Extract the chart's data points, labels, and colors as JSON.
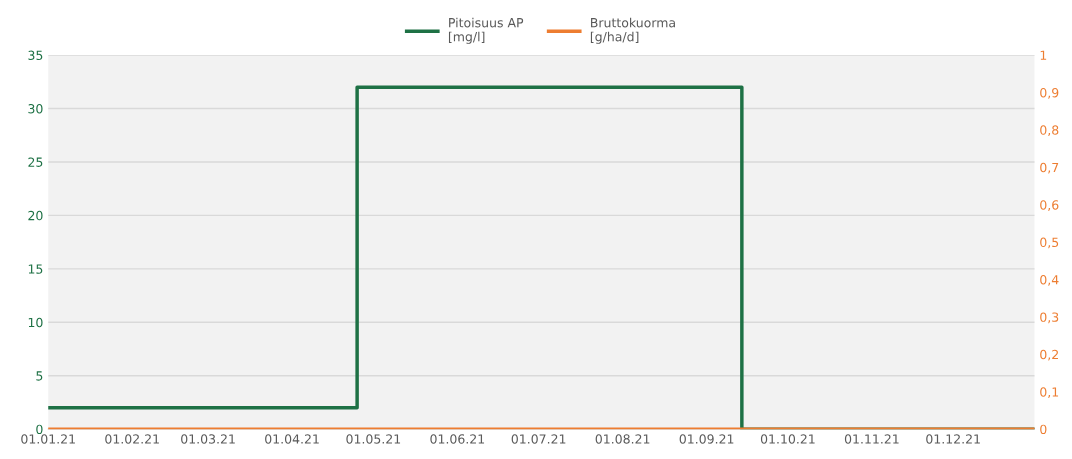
{
  "chart_data": {
    "type": "step",
    "series": [
      {
        "name": "Pitoisuus AP\n[mg/l]",
        "color": "#1e7145",
        "x": [
          "2021-01-01",
          "2021-04-25",
          "2021-09-14",
          "2021-12-31"
        ],
        "values": [
          2,
          32,
          0,
          0
        ]
      },
      {
        "name": "Bruttokuorma\n[g/ha/d]",
        "color": "#ed7d31",
        "type": "line",
        "axis": "y2",
        "x": [
          "2021-01-01",
          "2021-12-31"
        ],
        "values": [
          0,
          0
        ]
      }
    ],
    "xlim": [
      "2021-01-01",
      "2021-12-31"
    ],
    "xticks": [
      {
        "value": "2021-01-01",
        "label": "01.01.21"
      },
      {
        "value": "2021-02-01",
        "label": "01.02.21"
      },
      {
        "value": "2021-03-01",
        "label": "01.03.21"
      },
      {
        "value": "2021-04-01",
        "label": "01.04.21"
      },
      {
        "value": "2021-05-01",
        "label": "01.05.21"
      },
      {
        "value": "2021-06-01",
        "label": "01.06.21"
      },
      {
        "value": "2021-07-01",
        "label": "01.07.21"
      },
      {
        "value": "2021-08-01",
        "label": "01.08.21"
      },
      {
        "value": "2021-09-01",
        "label": "01.09.21"
      },
      {
        "value": "2021-10-01",
        "label": "01.10.21"
      },
      {
        "value": "2021-11-01",
        "label": "01.11.21"
      },
      {
        "value": "2021-12-01",
        "label": "01.12.21"
      }
    ],
    "ylim": [
      0,
      35
    ],
    "yticks": [
      0,
      5,
      10,
      15,
      20,
      25,
      30,
      35
    ],
    "y2lim": [
      0,
      1
    ],
    "y2ticks": [
      0,
      {
        "value": 0.1,
        "label": "0,1"
      },
      {
        "value": 0.2,
        "label": "0,2"
      },
      {
        "value": 0.3,
        "label": "0,3"
      },
      {
        "value": 0.4,
        "label": "0,4"
      },
      {
        "value": 0.5,
        "label": "0,5"
      },
      {
        "value": 0.6,
        "label": "0,6"
      },
      {
        "value": 0.7,
        "label": "0,7"
      },
      {
        "value": 0.8,
        "label": "0,8"
      },
      {
        "value": 0.9,
        "label": "0,9"
      },
      1
    ],
    "grid": "y",
    "legend": "top",
    "line_style": "solid",
    "marker": "none"
  }
}
